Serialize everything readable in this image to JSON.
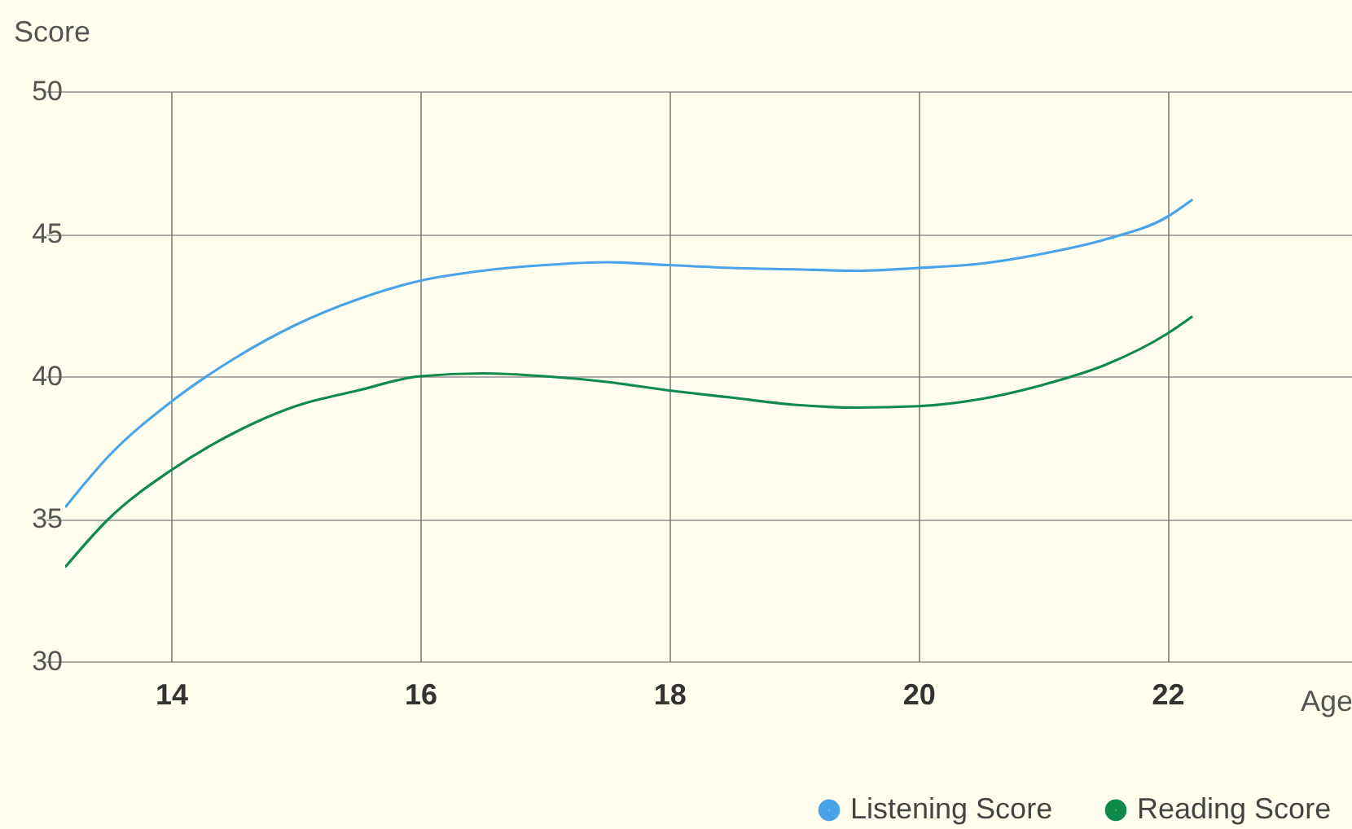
{
  "chart_data": {
    "type": "line",
    "ylabel": "Score",
    "xlabel": "Age",
    "xlim": [
      13.15,
      23.48
    ],
    "xticks": [
      14,
      16,
      18,
      20,
      22
    ],
    "ylim": [
      30,
      50
    ],
    "yticks": [
      30,
      35,
      40,
      45,
      50
    ],
    "grid": true,
    "legend": "bottom right",
    "marker": "none",
    "line_style": "solid",
    "series": [
      {
        "name": "Listening Score",
        "color": "#4aa3e8",
        "x": [
          13.15,
          13.5,
          14,
          14.5,
          15,
          15.5,
          16,
          16.5,
          17,
          17.5,
          18,
          18.5,
          19,
          19.5,
          20,
          20.5,
          21,
          21.5,
          22,
          22.2
        ],
        "values": [
          35.4,
          37.2,
          39.1,
          40.6,
          41.8,
          42.7,
          43.35,
          43.7,
          43.9,
          44.0,
          43.9,
          43.8,
          43.75,
          43.7,
          43.8,
          43.95,
          44.3,
          44.8,
          45.6,
          46.2
        ]
      },
      {
        "name": "Reading Score",
        "color": "#0f8a4a",
        "x": [
          13.15,
          13.5,
          14,
          14.5,
          15,
          15.5,
          16,
          16.5,
          17,
          17.5,
          18,
          18.5,
          19,
          19.5,
          20,
          20.5,
          21,
          21.5,
          22,
          22.2
        ],
        "values": [
          33.3,
          35.0,
          36.7,
          38.0,
          38.95,
          39.5,
          40.0,
          40.1,
          40.0,
          39.8,
          39.5,
          39.25,
          39.0,
          38.9,
          38.95,
          39.2,
          39.7,
          40.4,
          41.5,
          42.1
        ]
      }
    ]
  }
}
